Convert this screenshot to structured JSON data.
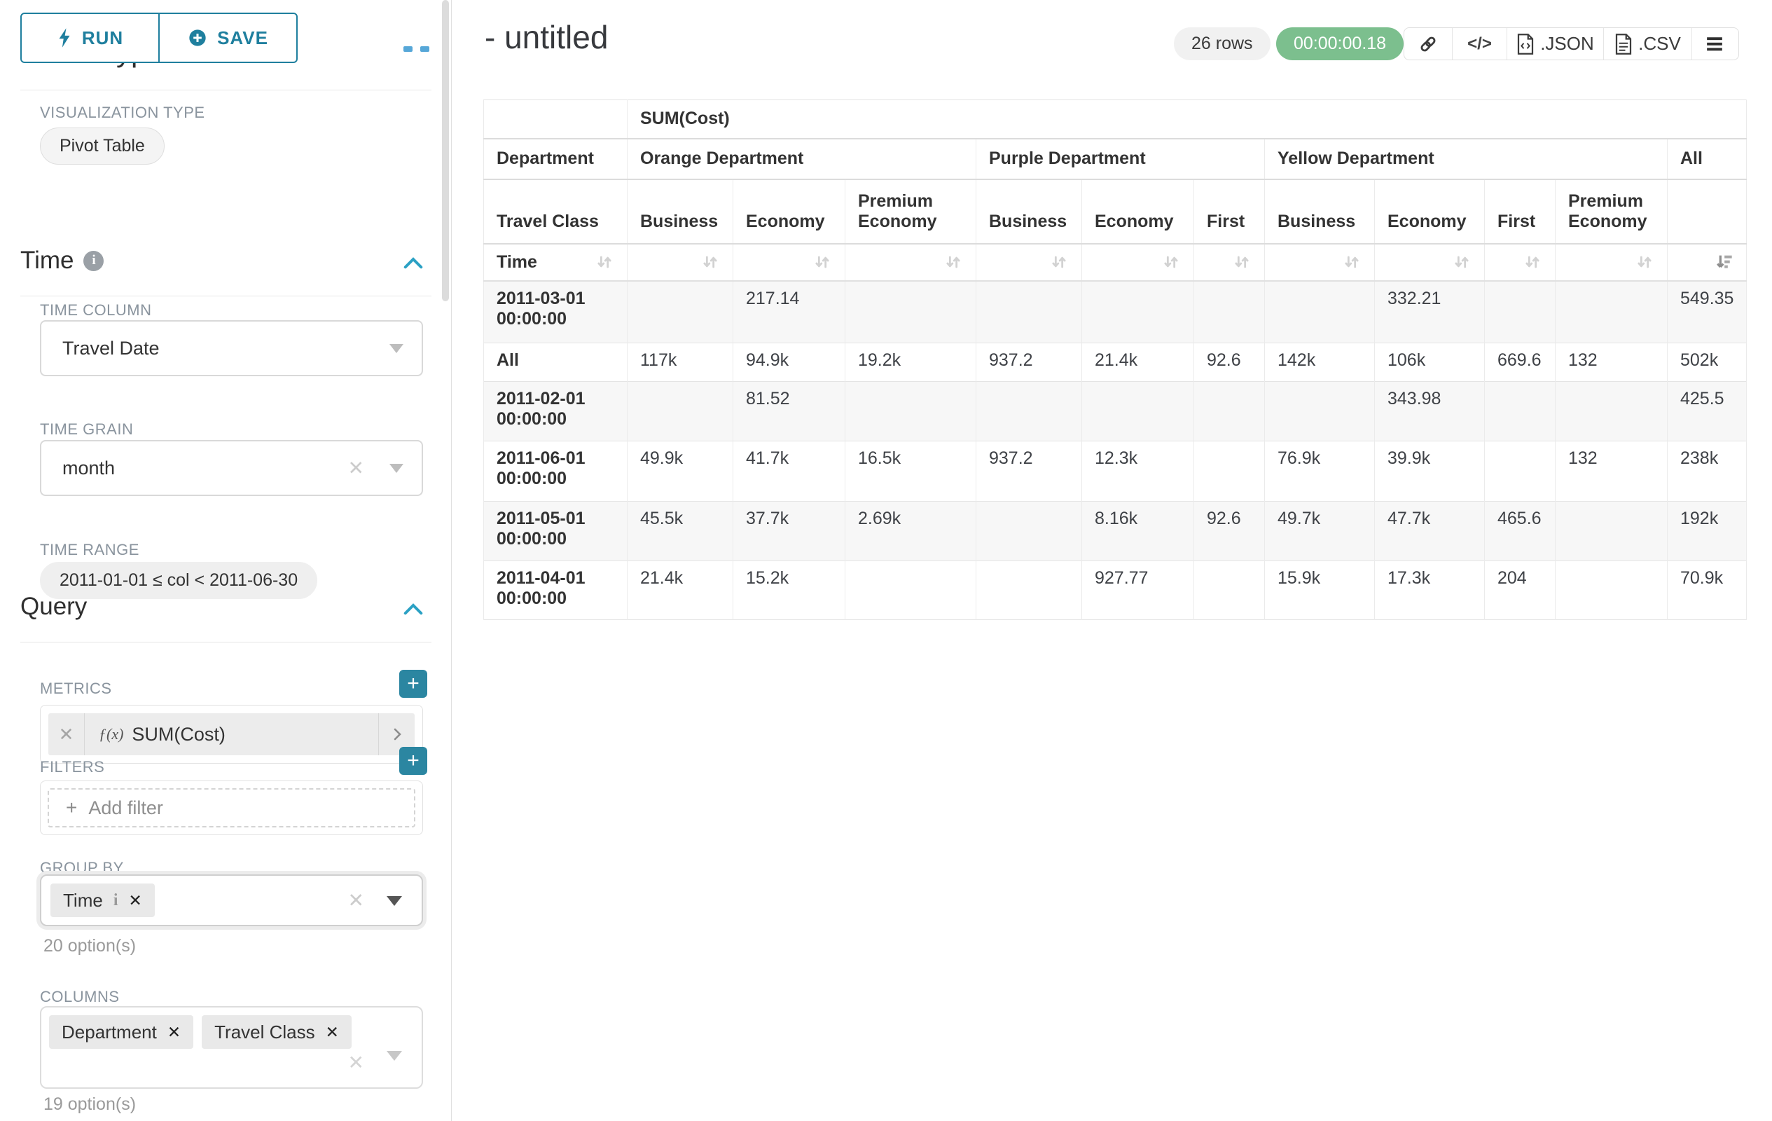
{
  "colors": {
    "accent": "#1f7f9e",
    "chevron_blue": "#2ba1c4",
    "timer_green": "#7cbf8e",
    "label_gray": "#8a949e",
    "row_stripe": "#f7f7f7"
  },
  "sidebar": {
    "run_label": "RUN",
    "save_label": "SAVE",
    "chart_type_section": "Chart Type",
    "viz_type_label": "VISUALIZATION TYPE",
    "viz_type_value": "Pivot Table",
    "time_section": "Time",
    "time_column_label": "TIME COLUMN",
    "time_column_value": "Travel Date",
    "time_grain_label": "TIME GRAIN",
    "time_grain_value": "month",
    "time_range_label": "TIME RANGE",
    "time_range_value": "2011-01-01 ≤ col < 2011-06-30",
    "query_section": "Query",
    "metrics_label": "METRICS",
    "metric_fx": "ƒ(x)",
    "metric_value": "SUM(Cost)",
    "filters_label": "FILTERS",
    "add_filter_label": "Add filter",
    "group_by_label": "GROUP BY",
    "group_by_chips": [
      "Time"
    ],
    "group_by_options": "20 option(s)",
    "columns_label": "COLUMNS",
    "columns_chips": [
      "Department",
      "Travel Class"
    ],
    "columns_options": "19 option(s)"
  },
  "header": {
    "title": "- untitled",
    "rows_badge": "26 rows",
    "timer_badge": "00:00:00.18",
    "export_json_label": ".JSON",
    "export_csv_label": ".CSV"
  },
  "table": {
    "metric_header": "SUM(Cost)",
    "row_dim_label": "Department",
    "col_dim_label": "Travel Class",
    "time_label": "Time",
    "groups": [
      {
        "label": "Orange Department",
        "cols": [
          "Business",
          "Economy",
          "Premium Economy"
        ]
      },
      {
        "label": "Purple Department",
        "cols": [
          "Business",
          "Economy",
          "First"
        ]
      },
      {
        "label": "Yellow Department",
        "cols": [
          "Business",
          "Economy",
          "First",
          "Premium Economy"
        ]
      },
      {
        "label": "All",
        "cols": [
          ""
        ]
      }
    ],
    "rows": [
      {
        "label": "2011-03-01 00:00:00",
        "values": [
          "",
          "217.14",
          "",
          "",
          "",
          "",
          "",
          "332.21",
          "",
          "",
          "549.35"
        ]
      },
      {
        "label": "All",
        "values": [
          "117k",
          "94.9k",
          "19.2k",
          "937.2",
          "21.4k",
          "92.6",
          "142k",
          "106k",
          "669.6",
          "132",
          "502k"
        ]
      },
      {
        "label": "2011-02-01 00:00:00",
        "values": [
          "",
          "81.52",
          "",
          "",
          "",
          "",
          "",
          "343.98",
          "",
          "",
          "425.5"
        ]
      },
      {
        "label": "2011-06-01 00:00:00",
        "values": [
          "49.9k",
          "41.7k",
          "16.5k",
          "937.2",
          "12.3k",
          "",
          "76.9k",
          "39.9k",
          "",
          "132",
          "238k"
        ]
      },
      {
        "label": "2011-05-01 00:00:00",
        "values": [
          "45.5k",
          "37.7k",
          "2.69k",
          "",
          "8.16k",
          "92.6",
          "49.7k",
          "47.7k",
          "465.6",
          "",
          "192k"
        ]
      },
      {
        "label": "2011-04-01 00:00:00",
        "values": [
          "21.4k",
          "15.2k",
          "",
          "",
          "927.77",
          "",
          "15.9k",
          "17.3k",
          "204",
          "",
          "70.9k"
        ]
      }
    ]
  }
}
